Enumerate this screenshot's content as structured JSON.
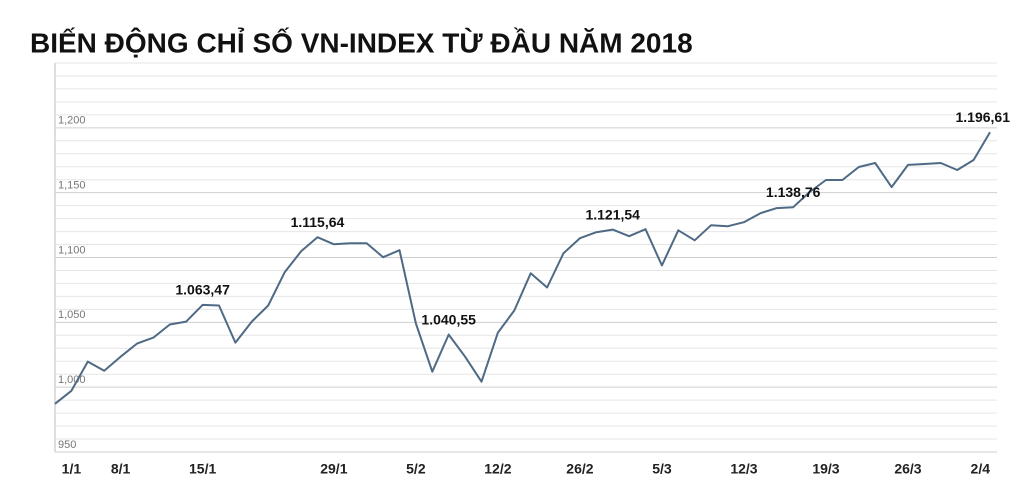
{
  "chart_data": {
    "type": "line",
    "title": "BIẾN ĐỘNG CHỈ SỐ VN-INDEX TỪ ĐẦU NĂM 2018",
    "categories": [
      null,
      "1/1",
      null,
      null,
      "8/1",
      null,
      null,
      null,
      null,
      "15/1",
      null,
      null,
      null,
      null,
      null,
      null,
      null,
      "29/1",
      null,
      null,
      null,
      null,
      "5/2",
      null,
      null,
      null,
      null,
      "12/2",
      null,
      null,
      null,
      null,
      "26/2",
      null,
      null,
      null,
      null,
      "5/3",
      null,
      null,
      null,
      null,
      "12/3",
      null,
      null,
      null,
      null,
      "19/3",
      null,
      null,
      null,
      null,
      "26/3",
      null,
      null,
      null,
      null,
      "2/4"
    ],
    "values": [
      987.2,
      997.2,
      1019.7,
      1012.7,
      1023.5,
      1033.6,
      1038.2,
      1048.3,
      1050.6,
      1063.47,
      1063.0,
      1034.4,
      1050.6,
      1063.0,
      1088.5,
      1104.8,
      1115.64,
      1110.2,
      1111.0,
      1111.0,
      1100.2,
      1105.6,
      1049.1,
      1011.9,
      1040.55,
      1023.5,
      1004.2,
      1042.1,
      1059.1,
      1087.8,
      1076.9,
      1103.3,
      1114.9,
      1119.5,
      1121.54,
      1116.4,
      1121.8,
      1093.9,
      1121.0,
      1113.3,
      1124.9,
      1124.1,
      1127.2,
      1134.2,
      1138.1,
      1138.76,
      1150.5,
      1159.8,
      1159.8,
      1169.8,
      1172.9,
      1154.3,
      1171.4,
      1172.1,
      1172.9,
      1167.5,
      1175.2,
      1196.61
    ],
    "value_labels": [
      null,
      null,
      null,
      null,
      null,
      null,
      null,
      null,
      null,
      "1.063,47",
      null,
      null,
      null,
      null,
      null,
      null,
      "1.115,64",
      null,
      null,
      null,
      null,
      null,
      null,
      null,
      "1.040,55",
      null,
      null,
      null,
      null,
      null,
      null,
      null,
      null,
      null,
      "1.121,54",
      null,
      null,
      null,
      null,
      null,
      null,
      null,
      null,
      null,
      null,
      "1.138,76",
      null,
      null,
      null,
      null,
      null,
      null,
      null,
      null,
      null,
      null,
      null,
      "1.196,61"
    ],
    "color": "#4f6a85",
    "ylim": [
      950,
      1250
    ],
    "yticks": [
      950,
      {
        "value": 1000,
        "label": "1,000"
      },
      {
        "value": 1050,
        "label": "1,050"
      },
      {
        "value": 1100,
        "label": "1,100"
      },
      {
        "value": 1150,
        "label": "1,150"
      },
      {
        "value": 1200,
        "label": "1,200"
      }
    ],
    "minor_yticks": [
      960,
      970,
      980,
      990,
      1010,
      1020,
      1030,
      1040,
      1060,
      1070,
      1080,
      1090,
      1110,
      1120,
      1130,
      1140,
      1160,
      1170,
      1180,
      1190,
      1210,
      1220,
      1230,
      1240,
      1250
    ],
    "grid": true
  }
}
